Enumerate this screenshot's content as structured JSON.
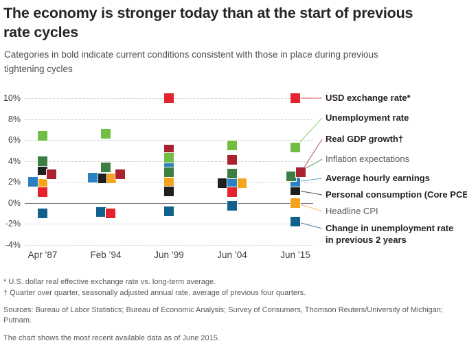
{
  "header": {
    "title": "The economy is stronger today than at the start of previous rate cycles",
    "subtitle": "Categories in bold indicate current conditions consistent with those in place during previous tightening cycles"
  },
  "chart_data": {
    "type": "scatter",
    "title": "The economy is stronger today than at the start of previous rate cycles",
    "categories": [
      "Apr ’87",
      "Feb ’94",
      "Jun ’99",
      "Jun ’04",
      "Jun ’15"
    ],
    "ylim": [
      -4,
      10
    ],
    "yticks": [
      10,
      8,
      6,
      4,
      2,
      0,
      -2,
      -4
    ],
    "ytick_suffix": "%",
    "grid": "horizontal dotted lines, solid line at 0%",
    "legend_position": "right, leader lines to Jun ’15 points",
    "marker": "square",
    "series": [
      {
        "name": "USD exchange rate*",
        "color": "#e5232e",
        "bold": true,
        "values": [
          1.0,
          -1.0,
          10.0,
          1.0,
          10.0
        ],
        "dx": [
          0,
          7,
          0,
          0,
          0
        ]
      },
      {
        "name": "Unemployment rate",
        "color": "#72bd44",
        "bold": true,
        "values": [
          6.4,
          6.6,
          4.3,
          5.5,
          5.3
        ],
        "dx": [
          0,
          0,
          0,
          0,
          0
        ]
      },
      {
        "name": "Real GDP growth†",
        "color": "#aa222f",
        "bold": true,
        "values": [
          2.7,
          2.7,
          5.1,
          4.1,
          2.9
        ],
        "dx": [
          13,
          21,
          0,
          0,
          8
        ]
      },
      {
        "name": "Inflation expectations",
        "color": "#3d7f42",
        "bold": false,
        "values": [
          4.0,
          3.4,
          2.9,
          2.8,
          2.5
        ],
        "dx": [
          0,
          0,
          0,
          0,
          -6
        ]
      },
      {
        "name": "Average hourly earnings",
        "color": "#2980c2",
        "bold": true,
        "values": [
          2.0,
          2.4,
          3.6,
          1.9,
          2.0
        ],
        "dx": [
          -14,
          -19,
          0,
          0,
          0
        ]
      },
      {
        "name": "Personal consumption (Core PCE)",
        "color": "#1f1f1f",
        "bold": true,
        "values": [
          3.1,
          2.3,
          1.1,
          1.9,
          1.2
        ],
        "dx": [
          0,
          -6,
          0,
          -14,
          0
        ]
      },
      {
        "name": "Headline CPI",
        "color": "#f6a41f",
        "bold": false,
        "values": [
          1.8,
          2.3,
          2.0,
          1.9,
          0.0
        ],
        "dx": [
          0,
          8,
          0,
          14,
          0
        ]
      },
      {
        "name": "Change in unemployment rate in previous 2 years",
        "color": "#11618e",
        "bold": true,
        "values": [
          -1.0,
          -0.9,
          -0.8,
          -0.3,
          -1.8
        ],
        "dx": [
          0,
          -7,
          0,
          0,
          0
        ]
      }
    ]
  },
  "footnotes": {
    "asterisk": "* U.S. dollar real effective exchange rate vs. long-term average.",
    "dagger": "† Quarter over quarter, seasonally adjusted annual rate, average of previous four quarters.",
    "sources": "Sources: Bureau of Labor Statistics; Bureau of Economic Analysis; Survey of Consumers, Thomson Reuters/University of Michigan; Putnam.",
    "as_of": "The chart shows the most recent available data as of June 2015."
  }
}
